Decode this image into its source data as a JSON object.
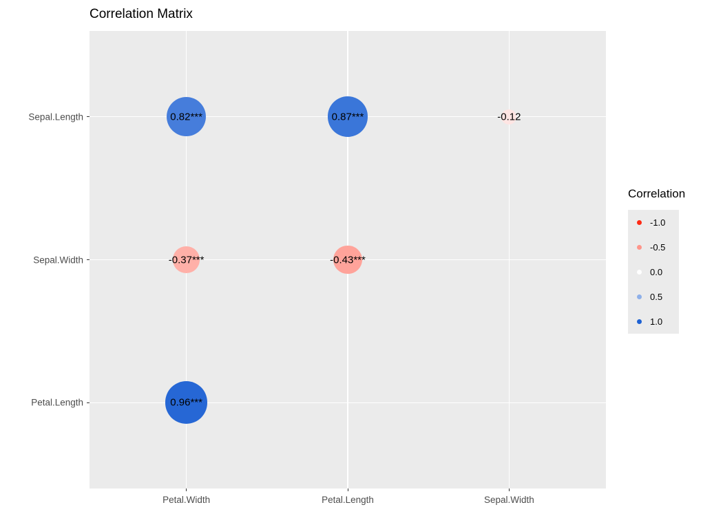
{
  "title": "Correlation Matrix",
  "legend": {
    "title": "Correlation",
    "keys": [
      {
        "label": "-1.0",
        "value": -1.0
      },
      {
        "label": "-0.5",
        "value": -0.5
      },
      {
        "label": "0.0",
        "value": 0.0
      },
      {
        "label": "0.5",
        "value": 0.5
      },
      {
        "label": "1.0",
        "value": 1.0
      }
    ]
  },
  "colors": {
    "panel_background": "#EBEBEB",
    "gridline": "#FFFFFF",
    "axis_text": "#4D4D4D",
    "negative_end": "#FF2A14",
    "positive_end": "#1D61D3",
    "zero": "#FFFFFF"
  },
  "chart_data": {
    "type": "scatter",
    "subtype": "correlation-bubble-matrix",
    "title": "Correlation Matrix",
    "x_categories": [
      "Petal.Width",
      "Petal.Length",
      "Sepal.Width"
    ],
    "y_categories": [
      "Sepal.Length",
      "Sepal.Width",
      "Petal.Length"
    ],
    "points": [
      {
        "x": "Petal.Width",
        "y": "Sepal.Length",
        "value": 0.82,
        "label": "0.82***"
      },
      {
        "x": "Petal.Length",
        "y": "Sepal.Length",
        "value": 0.87,
        "label": "0.87***"
      },
      {
        "x": "Sepal.Width",
        "y": "Sepal.Length",
        "value": -0.12,
        "label": "-0.12"
      },
      {
        "x": "Petal.Width",
        "y": "Sepal.Width",
        "value": -0.37,
        "label": "-0.37***"
      },
      {
        "x": "Petal.Length",
        "y": "Sepal.Width",
        "value": -0.43,
        "label": "-0.43***"
      },
      {
        "x": "Petal.Width",
        "y": "Petal.Length",
        "value": 0.96,
        "label": "0.96***"
      }
    ],
    "color_scale": {
      "low": "#FF2A14",
      "mid": "#FFFFFF",
      "high": "#1D61D3",
      "domain": [
        -1,
        1
      ]
    },
    "size_encoding": "circle area proportional to abs(correlation)",
    "legend_title": "Correlation",
    "legend_ticks": [
      -1.0,
      -0.5,
      0.0,
      0.5,
      1.0
    ],
    "grid": true,
    "panel_background": "#EBEBEB"
  }
}
